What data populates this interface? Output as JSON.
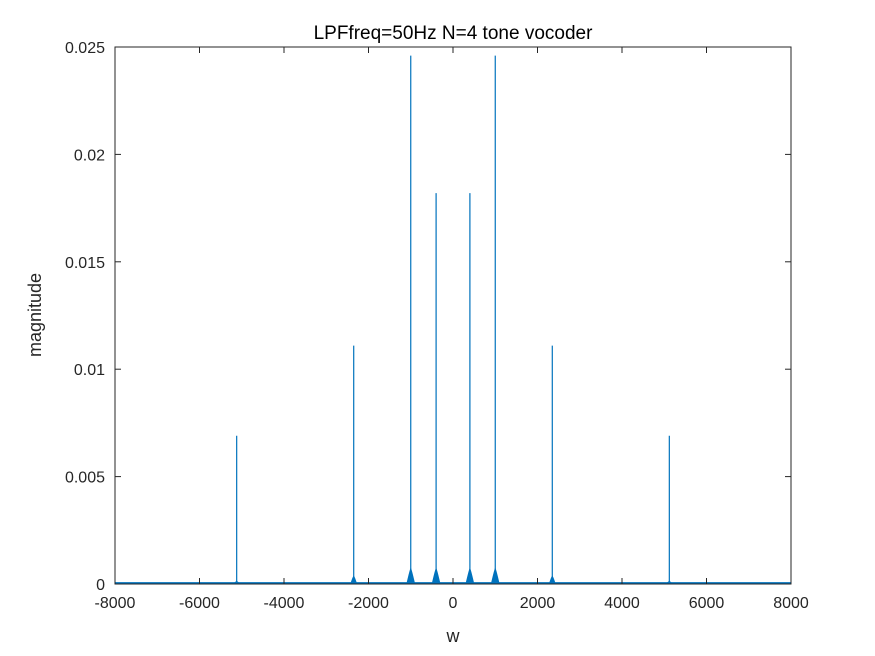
{
  "chart_data": {
    "type": "line",
    "title": "LPFfreq=50Hz  N=4  tone vocoder",
    "xlabel": "w",
    "ylabel": "magnitude",
    "xlim": [
      -8000,
      8000
    ],
    "ylim": [
      0,
      0.025
    ],
    "xticks": [
      -8000,
      -6000,
      -4000,
      -2000,
      0,
      2000,
      4000,
      6000,
      8000
    ],
    "xtick_labels": [
      "-8000",
      "-6000",
      "-4000",
      "-2000",
      "0",
      "2000",
      "4000",
      "6000",
      "8000"
    ],
    "yticks": [
      0,
      0.005,
      0.01,
      0.015,
      0.02,
      0.025
    ],
    "ytick_labels": [
      "0",
      "0.005",
      "0.01",
      "0.015",
      "0.02",
      "0.025"
    ],
    "grid": false,
    "line_color": "#0072BD",
    "baseline": 5e-05,
    "peaks": [
      {
        "x": -5120,
        "y": 0.0069,
        "base": 0.0001
      },
      {
        "x": -2350,
        "y": 0.0111,
        "base": 0.0003
      },
      {
        "x": -1000,
        "y": 0.0246,
        "base": 0.0006
      },
      {
        "x": -400,
        "y": 0.0182,
        "base": 0.0006
      },
      {
        "x": 400,
        "y": 0.0182,
        "base": 0.0006
      },
      {
        "x": 1000,
        "y": 0.0246,
        "base": 0.0006
      },
      {
        "x": 2350,
        "y": 0.0111,
        "base": 0.0003
      },
      {
        "x": 5120,
        "y": 0.0069,
        "base": 0.0001
      }
    ]
  }
}
